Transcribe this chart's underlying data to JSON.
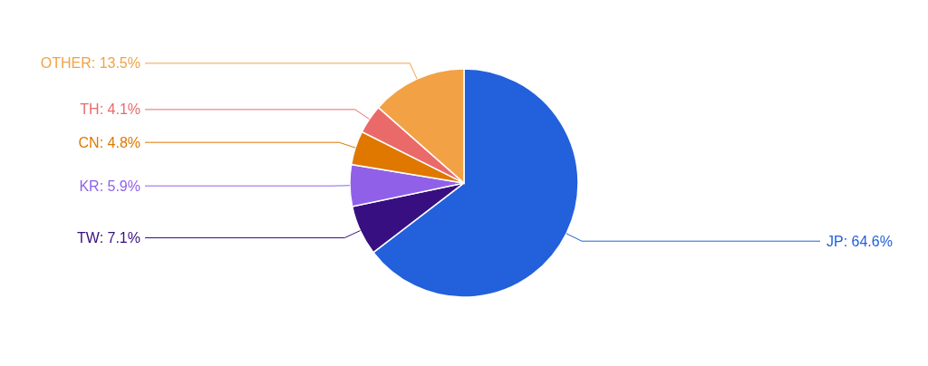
{
  "chart_data": {
    "type": "pie",
    "categories": [
      "JP",
      "TW",
      "KR",
      "CN",
      "TH",
      "OTHER"
    ],
    "values": [
      64.6,
      7.1,
      5.9,
      4.8,
      4.1,
      13.5
    ],
    "colors": [
      "#2360db",
      "#380f80",
      "#9061e8",
      "#e07800",
      "#ea6a6a",
      "#f2a245"
    ],
    "value_labels": [
      "64.6%",
      "7.1%",
      "5.9%",
      "4.8%",
      "4.1%",
      "13.5%"
    ]
  }
}
